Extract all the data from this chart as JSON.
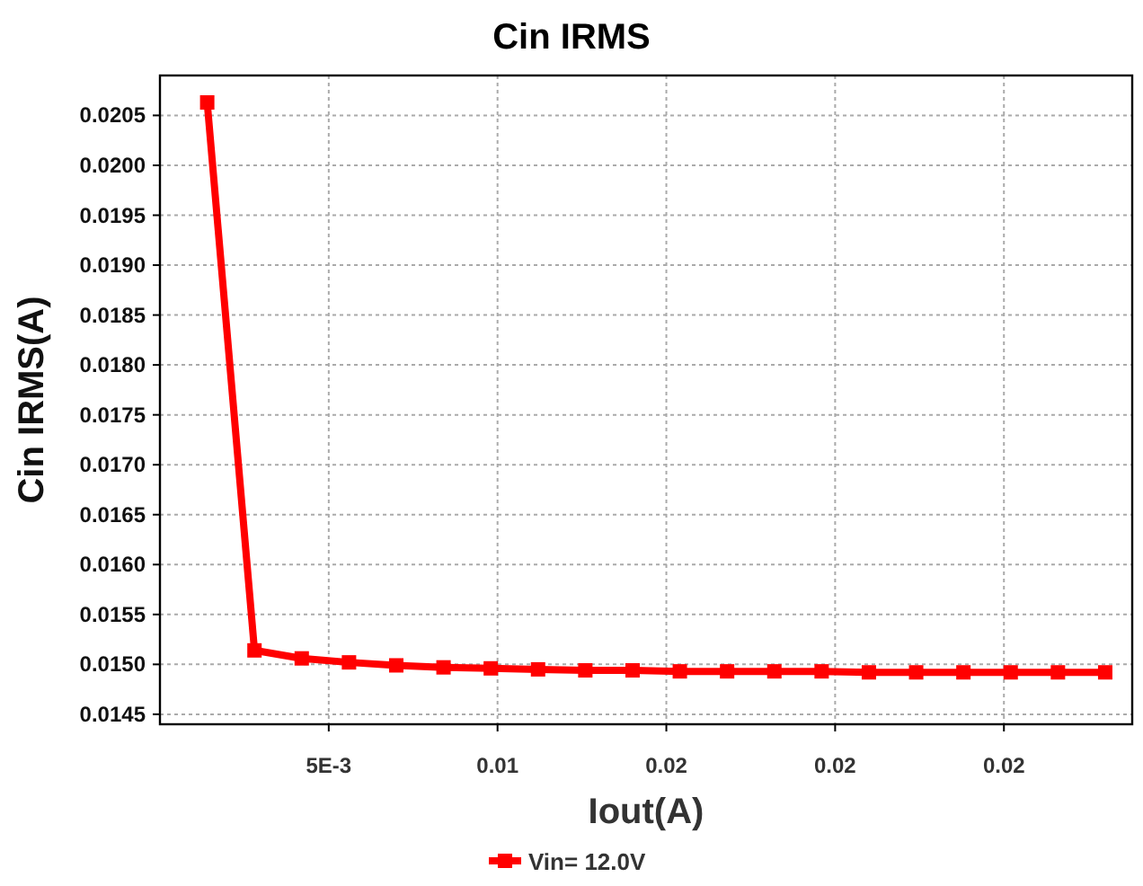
{
  "chart_data": {
    "type": "line",
    "title": "Cin IRMS",
    "xlabel": "Iout(A)",
    "ylabel": "Cin IRMS(A)",
    "x": [
      0.0014,
      0.0028,
      0.0042,
      0.0056,
      0.007,
      0.0084,
      0.0098,
      0.0112,
      0.0126,
      0.014,
      0.0154,
      0.0168,
      0.0182,
      0.0196,
      0.021,
      0.0224,
      0.0238,
      0.0252,
      0.0266,
      0.028
    ],
    "series": [
      {
        "name": "Vin= 12.0V",
        "color": "#ff0000",
        "values": [
          0.02063,
          0.01514,
          0.01506,
          0.01502,
          0.01499,
          0.01497,
          0.01496,
          0.01495,
          0.01494,
          0.01494,
          0.01493,
          0.01493,
          0.01493,
          0.01493,
          0.01492,
          0.01492,
          0.01492,
          0.01492,
          0.01492,
          0.01492
        ]
      }
    ],
    "xlim": [
      0,
      0.0288
    ],
    "ylim": [
      0.0144,
      0.0209
    ],
    "xticks": [
      {
        "value": 0.005,
        "label": "5E-3"
      },
      0.01,
      {
        "value": 0.015,
        "label": "0.02"
      },
      0.02,
      {
        "value": 0.025,
        "label": "0.02"
      }
    ],
    "yticks": [
      {
        "value": 0.0145,
        "label": "0.0145"
      },
      {
        "value": 0.015,
        "label": "0.0150"
      },
      {
        "value": 0.0155,
        "label": "0.0155"
      },
      {
        "value": 0.016,
        "label": "0.0160"
      },
      {
        "value": 0.0165,
        "label": "0.0165"
      },
      {
        "value": 0.017,
        "label": "0.0170"
      },
      {
        "value": 0.0175,
        "label": "0.0175"
      },
      {
        "value": 0.018,
        "label": "0.0180"
      },
      {
        "value": 0.0185,
        "label": "0.0185"
      },
      {
        "value": 0.019,
        "label": "0.0190"
      },
      {
        "value": 0.0195,
        "label": "0.0195"
      },
      {
        "value": 0.02,
        "label": "0.0200"
      },
      {
        "value": 0.0205,
        "label": "0.0205"
      }
    ],
    "grid": true,
    "legend": "bottom",
    "marker": "square",
    "line_style": "solid"
  }
}
